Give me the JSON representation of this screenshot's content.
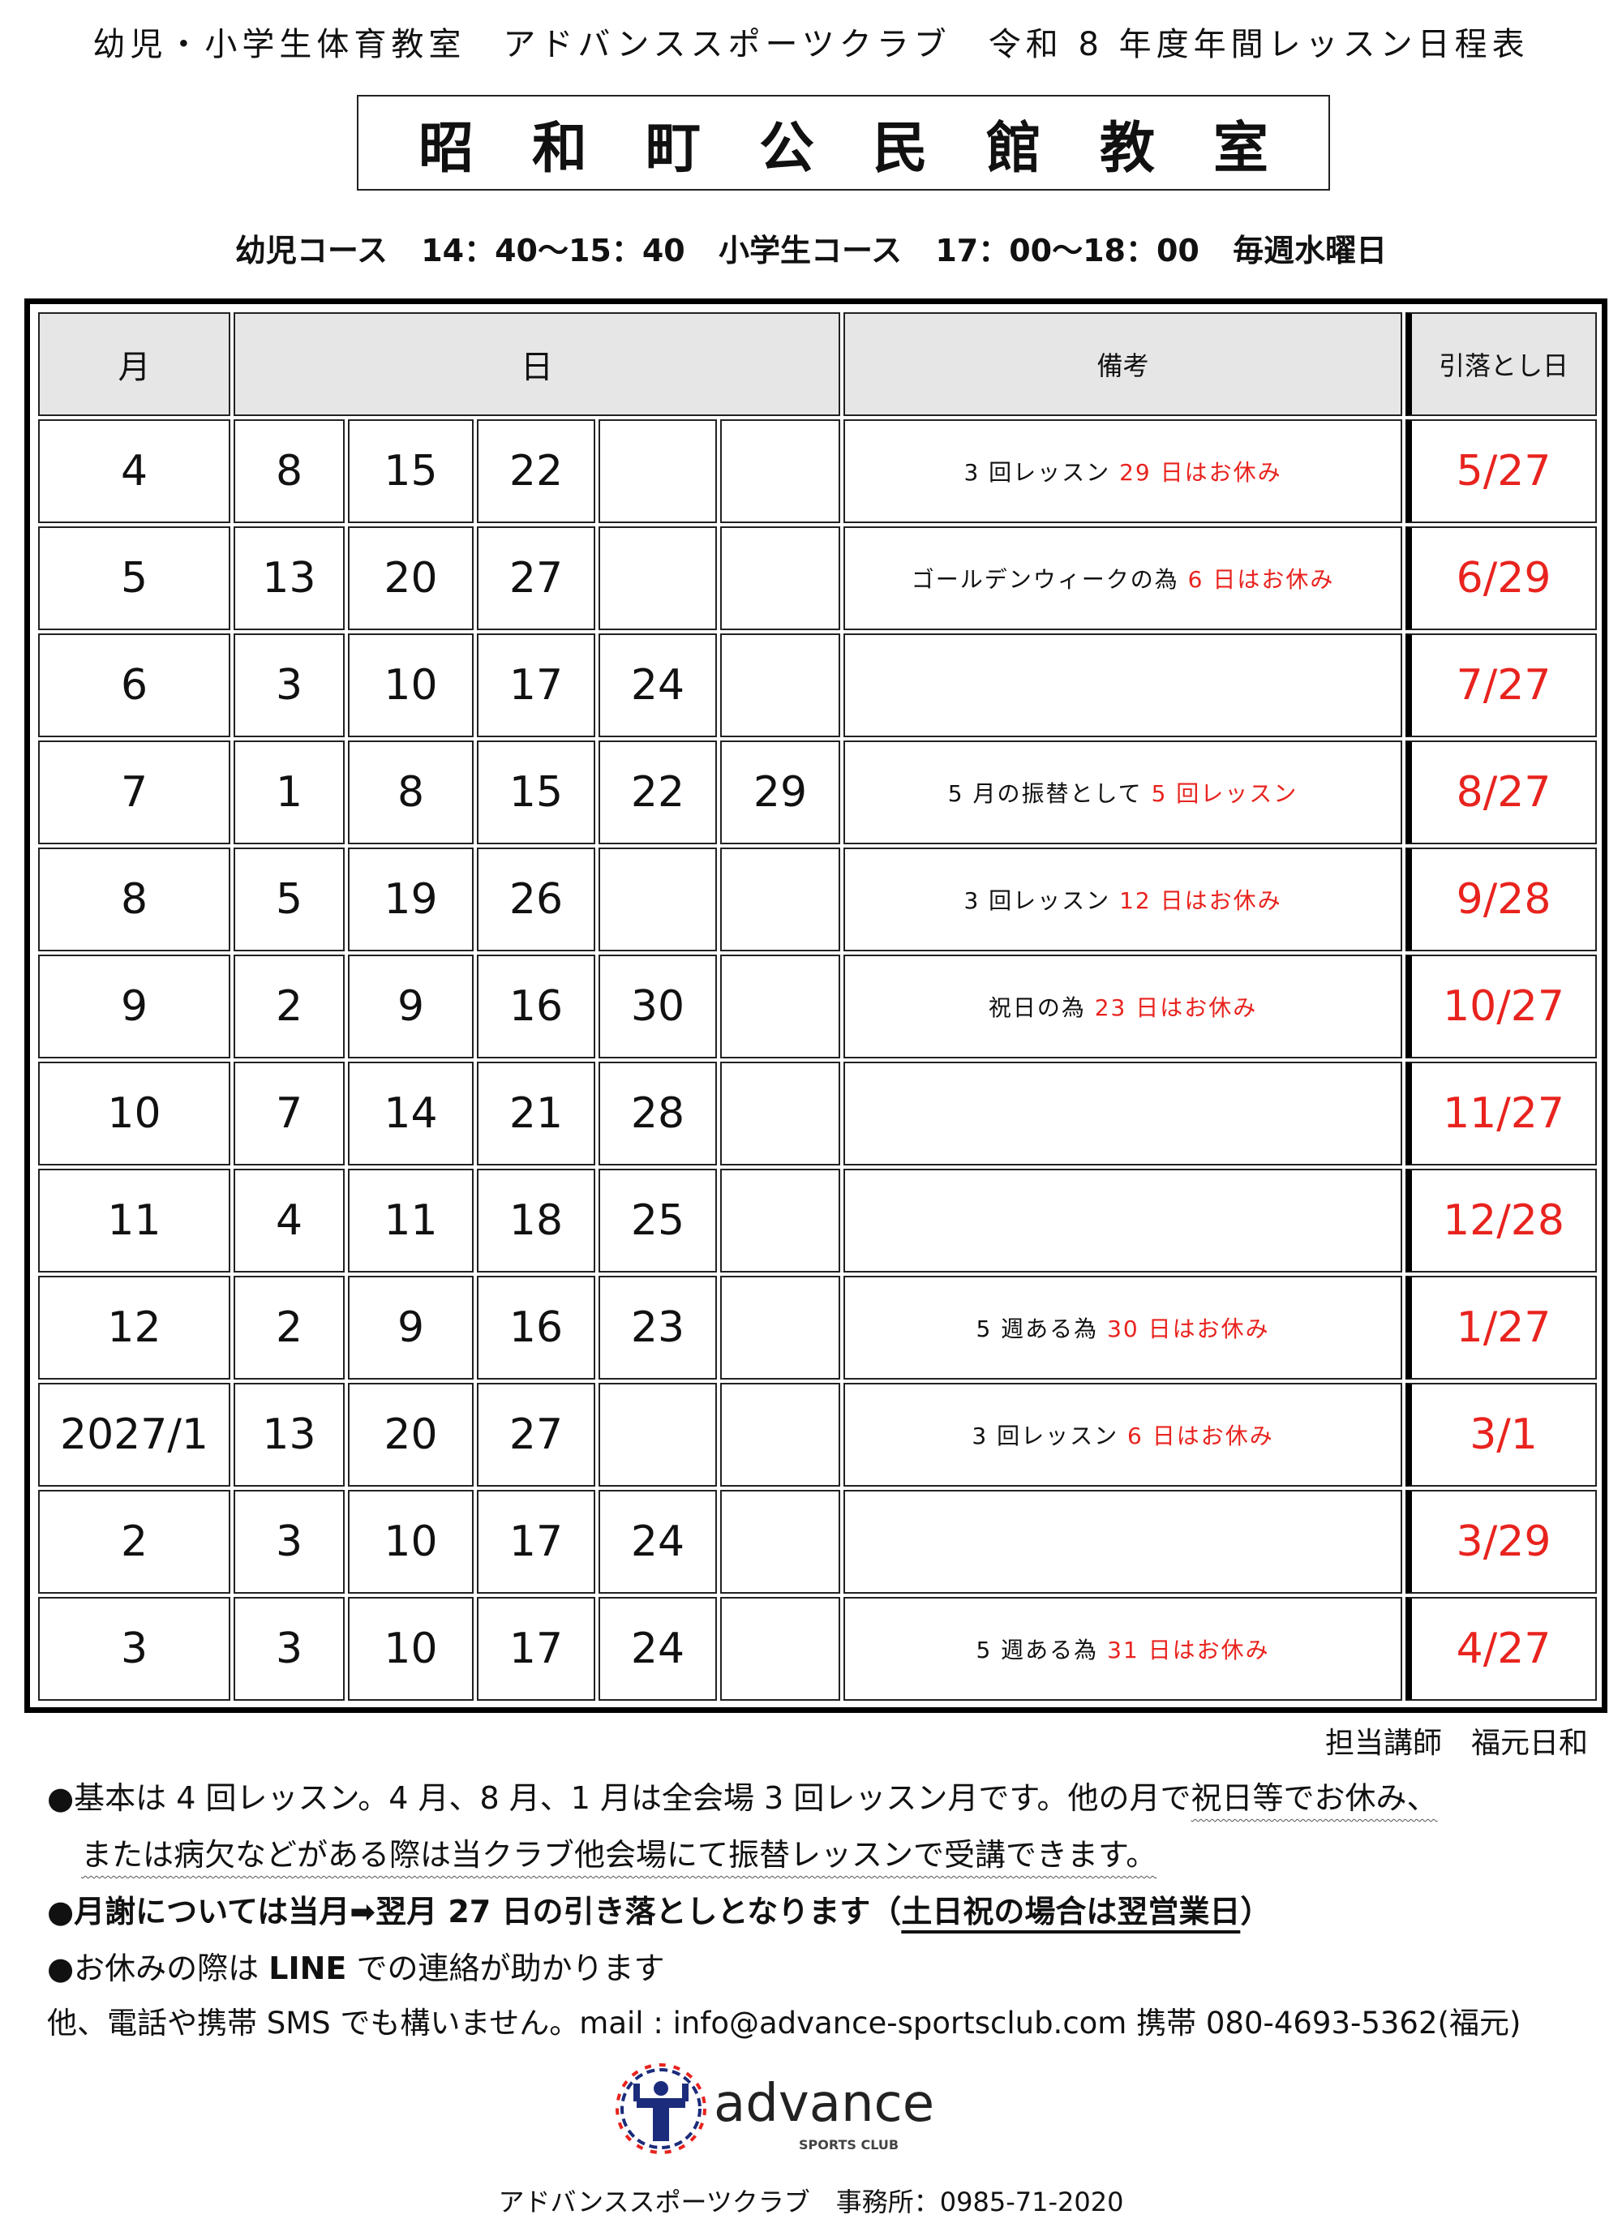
{
  "header": {
    "title": "幼児・小学生体育教室　アドバンススポーツクラブ　令和 8 年度年間レッスン日程表",
    "venue": "昭和町公民館教室",
    "course_infant": "幼児コース",
    "course_infant_time": "14：40～15：40",
    "course_elementary": "小学生コース",
    "course_elementary_time": "17：00～18：00",
    "course_day": "毎週水曜日"
  },
  "table": {
    "headers": {
      "month": "月",
      "day": "日",
      "note": "備考",
      "debit": "引落とし日"
    },
    "rows": [
      {
        "month": "4",
        "days": [
          "8",
          "15",
          "22",
          "",
          ""
        ],
        "note_pre": "3 回レッスン ",
        "note_red": "29 日はお休み",
        "debit": "5/27"
      },
      {
        "month": "5",
        "days": [
          "13",
          "20",
          "27",
          "",
          ""
        ],
        "note_pre": "ゴールデンウィークの為 ",
        "note_red": "6 日はお休み",
        "debit": "6/29"
      },
      {
        "month": "6",
        "days": [
          "3",
          "10",
          "17",
          "24",
          ""
        ],
        "note_pre": "",
        "note_red": "",
        "debit": "7/27"
      },
      {
        "month": "7",
        "days": [
          "1",
          "8",
          "15",
          "22",
          "29"
        ],
        "note_pre": "5 月の振替として ",
        "note_red": "5 回レッスン",
        "debit": "8/27"
      },
      {
        "month": "8",
        "days": [
          "5",
          "19",
          "26",
          "",
          ""
        ],
        "note_pre": "3 回レッスン ",
        "note_red": "12 日はお休み",
        "debit": "9/28"
      },
      {
        "month": "9",
        "days": [
          "2",
          "9",
          "16",
          "30",
          ""
        ],
        "note_pre": "祝日の為 ",
        "note_red": "23 日はお休み",
        "debit": "10/27"
      },
      {
        "month": "10",
        "days": [
          "7",
          "14",
          "21",
          "28",
          ""
        ],
        "note_pre": "",
        "note_red": "",
        "debit": "11/27"
      },
      {
        "month": "11",
        "days": [
          "4",
          "11",
          "18",
          "25",
          ""
        ],
        "note_pre": "",
        "note_red": "",
        "debit": "12/28"
      },
      {
        "month": "12",
        "days": [
          "2",
          "9",
          "16",
          "23",
          ""
        ],
        "note_pre": "5 週ある為 ",
        "note_red": "30 日はお休み",
        "debit": "1/27"
      },
      {
        "month": "2027/1",
        "days": [
          "13",
          "20",
          "27",
          "",
          ""
        ],
        "note_pre": "3 回レッスン ",
        "note_red": "6 日はお休み",
        "debit": "3/1"
      },
      {
        "month": "2",
        "days": [
          "3",
          "10",
          "17",
          "24",
          ""
        ],
        "note_pre": "",
        "note_red": "",
        "debit": "3/29"
      },
      {
        "month": "3",
        "days": [
          "3",
          "10",
          "17",
          "24",
          ""
        ],
        "note_pre": "5 週ある為 ",
        "note_red": "31 日はお休み",
        "debit": "4/27"
      }
    ]
  },
  "notes": {
    "teacher": "担当講師　福元日和",
    "line1_a": "●基本は 4 回レッスン。4 月、8 月、1 月は全会場 3 回レッスン月です。他の月で",
    "line1_b": "祝日等でお休み、",
    "line2": "または病欠などがある際は当クラブ他会場にて振替レッスンで受講できます。",
    "line3_a": "●月謝については当月➡翌月 27 日の引き落としとなります（",
    "line3_b": "土日祝の場合は翌営業日",
    "line3_c": "）",
    "line4_a": "●お休みの際は ",
    "line4_b": "LINE",
    "line4_c": " での連絡が助かります",
    "line5": "他、電話や携帯 SMS でも構いません。mail : info@advance-sportsclub.com 携帯 080-4693-5362(福元)"
  },
  "logo": {
    "text": "advance",
    "sub": "SPORTS CLUB",
    "colors": {
      "navy": "#1c2c7c",
      "red": "#e8231e"
    }
  },
  "footer": "アドバンススポーツクラブ　事務所：0985-71-2020",
  "colors": {
    "accent_red": "#e8231e",
    "header_bg": "#e6e6e6"
  }
}
